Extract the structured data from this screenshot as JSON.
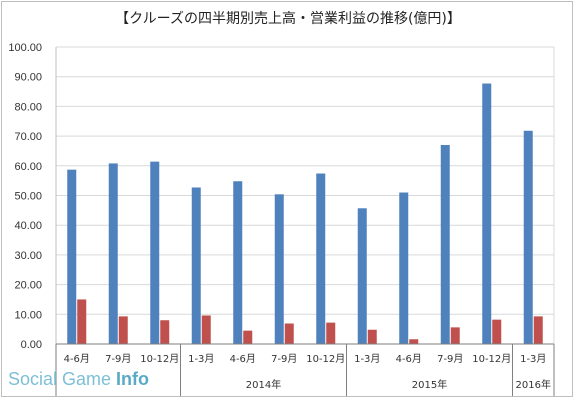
{
  "chart_data": {
    "type": "bar",
    "title": "【クルーズの四半期別売上高・営業利益の推移(億円)】",
    "ylim": [
      0,
      100
    ],
    "yticks": [
      "0.00",
      "10.00",
      "20.00",
      "30.00",
      "40.00",
      "50.00",
      "60.00",
      "70.00",
      "80.00",
      "90.00",
      "100.00"
    ],
    "grid": true,
    "categories": [
      "4-6月",
      "7-9月",
      "10-12月",
      "1-3月",
      "4-6月",
      "7-9月",
      "10-12月",
      "1-3月",
      "4-6月",
      "7-9月",
      "10-12月",
      "1-3月"
    ],
    "year_groups": [
      {
        "label": "",
        "count": 3
      },
      {
        "label": "2014年",
        "count": 4
      },
      {
        "label": "2015年",
        "count": 4
      },
      {
        "label": "2016年",
        "count": 1
      }
    ],
    "series": [
      {
        "name": "",
        "color": "#4f81bd",
        "values": [
          58.7,
          60.8,
          61.4,
          52.7,
          54.8,
          50.4,
          57.4,
          45.7,
          51.0,
          67.0,
          87.7,
          71.8
        ]
      },
      {
        "name": "",
        "color": "#c0504d",
        "values": [
          15.0,
          9.3,
          8.0,
          9.6,
          4.5,
          6.9,
          7.2,
          4.8,
          1.6,
          5.6,
          8.2,
          9.3
        ]
      }
    ]
  },
  "watermark": {
    "part1": "Social Game ",
    "part2": "Info"
  }
}
